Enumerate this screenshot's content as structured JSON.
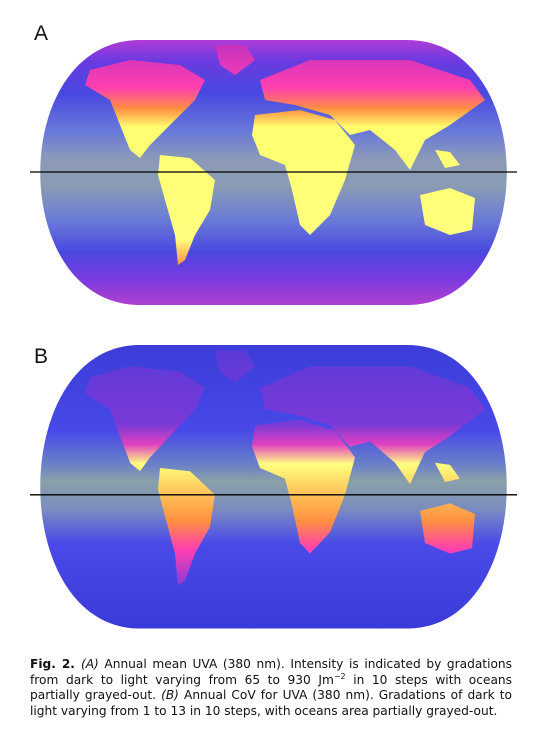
{
  "panels": [
    {
      "label": "A"
    },
    {
      "label": "B"
    }
  ],
  "caption": {
    "label": "Fig. 2.",
    "segments": [
      {
        "text": "(A)",
        "italic": true
      },
      {
        "text": " Annual mean UVA (380 nm). Intensity is indicated by gradations from dark to light varying from 65 to 930 Jm"
      },
      {
        "text": "−2",
        "sup": true
      },
      {
        "text": " in 10 steps with oceans partially grayed-out. "
      },
      {
        "text": "(B)",
        "italic": true
      },
      {
        "text": " Annual CoV for UVA (380 nm). Gradations of dark to light varying from 1 to 13 in 10 steps, with oceans area partially grayed-out."
      }
    ]
  }
}
